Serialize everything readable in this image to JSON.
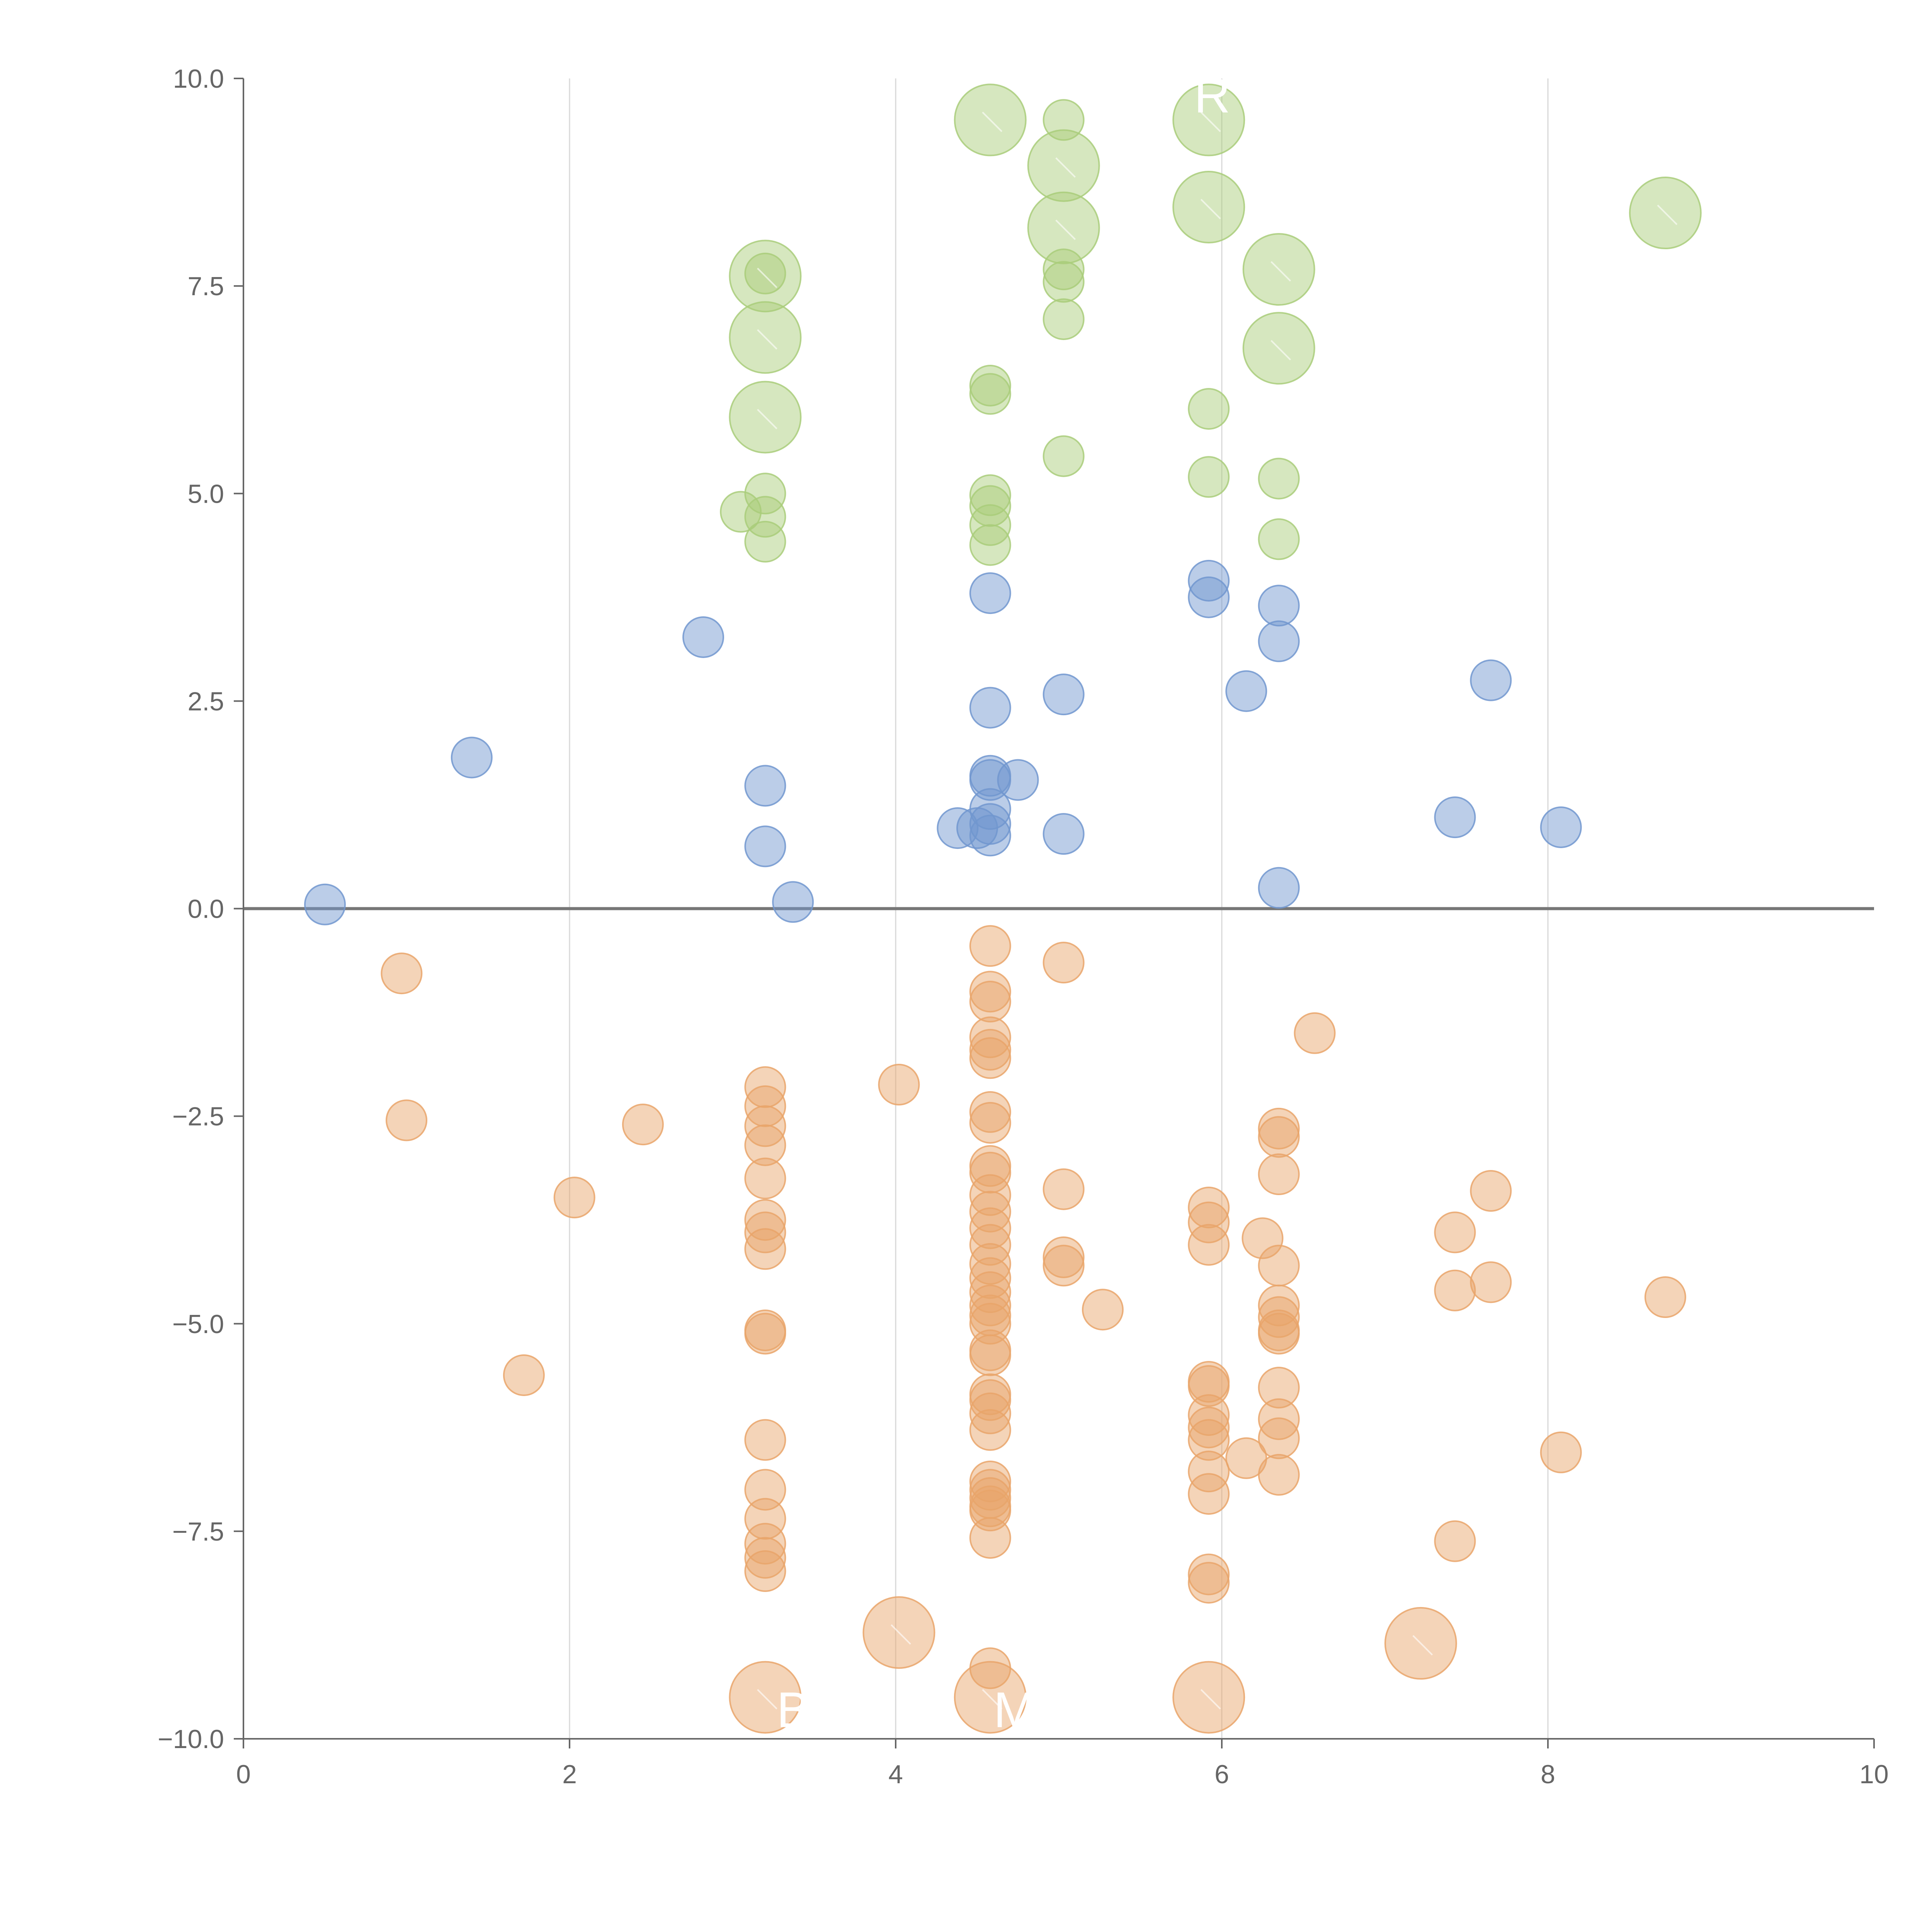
{
  "chart_data": {
    "type": "scatter",
    "title": "",
    "xlabel": "",
    "ylabel": "",
    "xlim": [
      0,
      10
    ],
    "ylim": [
      -10,
      10
    ],
    "x_ticks": [
      "0",
      "2",
      "4",
      "6",
      "8",
      "10"
    ],
    "y_ticks": [
      "−10.0",
      "−7.5",
      "−5.0",
      "−2.5",
      "0.0",
      "2.5",
      "5.0",
      "7.5",
      "10.0"
    ],
    "x_tick_values": [
      0,
      2,
      4,
      6,
      8,
      10
    ],
    "y_tick_values": [
      -10,
      -7.5,
      -5,
      -2.5,
      0,
      2.5,
      5,
      7.5,
      10
    ],
    "vertical_gridlines_at": [
      2,
      4,
      6,
      8
    ],
    "horizontal_reference_line_at": 0,
    "colors": {
      "green": "#a9cd7a",
      "blue": "#7197cf",
      "orange": "#e9a56a",
      "axis": "#666666",
      "grid": "#d8d8d8",
      "zero_line": "#777777"
    },
    "size_note": "r is a relative marker size (small = 1)",
    "series": [
      {
        "name": "green",
        "color": "#a9cd7a",
        "points": [
          {
            "x": 4.58,
            "y": 9.5,
            "r": 2.0
          },
          {
            "x": 5.03,
            "y": 9.5,
            "r": 1.0
          },
          {
            "x": 5.92,
            "y": 9.5,
            "r": 2.0
          },
          {
            "x": 5.03,
            "y": 8.95,
            "r": 2.0
          },
          {
            "x": 5.92,
            "y": 8.45,
            "r": 2.0
          },
          {
            "x": 8.72,
            "y": 8.38,
            "r": 2.0
          },
          {
            "x": 5.03,
            "y": 8.2,
            "r": 2.0
          },
          {
            "x": 3.2,
            "y": 7.65,
            "r": 1.0
          },
          {
            "x": 3.2,
            "y": 7.62,
            "r": 2.0
          },
          {
            "x": 6.35,
            "y": 7.7,
            "r": 2.0
          },
          {
            "x": 5.03,
            "y": 7.7,
            "r": 1.0
          },
          {
            "x": 5.03,
            "y": 7.55,
            "r": 1.0
          },
          {
            "x": 5.03,
            "y": 7.1,
            "r": 1.0
          },
          {
            "x": 3.2,
            "y": 6.88,
            "r": 2.0
          },
          {
            "x": 6.35,
            "y": 6.75,
            "r": 2.0
          },
          {
            "x": 4.58,
            "y": 6.3,
            "r": 1.0
          },
          {
            "x": 4.58,
            "y": 6.2,
            "r": 1.0
          },
          {
            "x": 5.92,
            "y": 6.02,
            "r": 1.0
          },
          {
            "x": 3.2,
            "y": 5.92,
            "r": 2.0
          },
          {
            "x": 5.03,
            "y": 5.45,
            "r": 1.0
          },
          {
            "x": 5.92,
            "y": 5.2,
            "r": 1.0
          },
          {
            "x": 6.35,
            "y": 5.18,
            "r": 1.0
          },
          {
            "x": 3.2,
            "y": 5.0,
            "r": 1.0
          },
          {
            "x": 4.58,
            "y": 4.98,
            "r": 1.0
          },
          {
            "x": 4.58,
            "y": 4.85,
            "r": 1.0
          },
          {
            "x": 3.05,
            "y": 4.78,
            "r": 1.0
          },
          {
            "x": 3.2,
            "y": 4.72,
            "r": 1.0
          },
          {
            "x": 4.58,
            "y": 4.62,
            "r": 1.0
          },
          {
            "x": 6.35,
            "y": 4.45,
            "r": 1.0
          },
          {
            "x": 3.2,
            "y": 4.42,
            "r": 1.0
          },
          {
            "x": 4.58,
            "y": 4.38,
            "r": 1.0
          }
        ]
      },
      {
        "name": "blue",
        "color": "#7197cf",
        "points": [
          {
            "x": 5.92,
            "y": 3.95,
            "r": 1.0
          },
          {
            "x": 4.58,
            "y": 3.8,
            "r": 1.0
          },
          {
            "x": 5.92,
            "y": 3.75,
            "r": 1.0
          },
          {
            "x": 6.35,
            "y": 3.65,
            "r": 1.0
          },
          {
            "x": 2.82,
            "y": 3.27,
            "r": 1.0
          },
          {
            "x": 6.35,
            "y": 3.22,
            "r": 1.0
          },
          {
            "x": 7.65,
            "y": 2.75,
            "r": 1.0
          },
          {
            "x": 6.15,
            "y": 2.62,
            "r": 1.0
          },
          {
            "x": 5.03,
            "y": 2.58,
            "r": 1.0
          },
          {
            "x": 4.58,
            "y": 2.42,
            "r": 1.0
          },
          {
            "x": 1.4,
            "y": 1.82,
            "r": 1.0
          },
          {
            "x": 4.58,
            "y": 1.6,
            "r": 1.0
          },
          {
            "x": 4.58,
            "y": 1.55,
            "r": 1.0
          },
          {
            "x": 4.75,
            "y": 1.55,
            "r": 1.0
          },
          {
            "x": 3.2,
            "y": 1.48,
            "r": 1.0
          },
          {
            "x": 4.58,
            "y": 1.2,
            "r": 1.0
          },
          {
            "x": 7.43,
            "y": 1.1,
            "r": 1.0
          },
          {
            "x": 4.58,
            "y": 1.02,
            "r": 1.0
          },
          {
            "x": 8.08,
            "y": 0.98,
            "r": 1.0
          },
          {
            "x": 4.38,
            "y": 0.97,
            "r": 1.0
          },
          {
            "x": 4.5,
            "y": 0.97,
            "r": 1.0
          },
          {
            "x": 5.03,
            "y": 0.9,
            "r": 1.0
          },
          {
            "x": 4.58,
            "y": 0.88,
            "r": 1.0
          },
          {
            "x": 3.2,
            "y": 0.75,
            "r": 1.0
          },
          {
            "x": 6.35,
            "y": 0.25,
            "r": 1.0
          },
          {
            "x": 3.37,
            "y": 0.08,
            "r": 1.0
          },
          {
            "x": 0.5,
            "y": 0.05,
            "r": 1.0
          }
        ]
      },
      {
        "name": "orange",
        "color": "#e9a56a",
        "points": [
          {
            "x": 4.58,
            "y": -0.45,
            "r": 1.0
          },
          {
            "x": 5.03,
            "y": -0.65,
            "r": 1.0
          },
          {
            "x": 0.97,
            "y": -0.78,
            "r": 1.0
          },
          {
            "x": 4.58,
            "y": -1.0,
            "r": 1.0
          },
          {
            "x": 4.58,
            "y": -1.12,
            "r": 1.0
          },
          {
            "x": 6.57,
            "y": -1.5,
            "r": 1.0
          },
          {
            "x": 4.58,
            "y": -1.55,
            "r": 1.0
          },
          {
            "x": 4.58,
            "y": -1.7,
            "r": 1.0
          },
          {
            "x": 4.58,
            "y": -1.8,
            "r": 1.0
          },
          {
            "x": 4.02,
            "y": -2.12,
            "r": 1.0
          },
          {
            "x": 3.2,
            "y": -2.15,
            "r": 1.0
          },
          {
            "x": 3.2,
            "y": -2.38,
            "r": 1.0
          },
          {
            "x": 4.58,
            "y": -2.45,
            "r": 1.0
          },
          {
            "x": 1.0,
            "y": -2.55,
            "r": 1.0
          },
          {
            "x": 2.45,
            "y": -2.6,
            "r": 1.0
          },
          {
            "x": 3.2,
            "y": -2.62,
            "r": 1.0
          },
          {
            "x": 4.58,
            "y": -2.58,
            "r": 1.0
          },
          {
            "x": 6.35,
            "y": -2.65,
            "r": 1.0
          },
          {
            "x": 6.35,
            "y": -2.75,
            "r": 1.0
          },
          {
            "x": 3.2,
            "y": -2.85,
            "r": 1.0
          },
          {
            "x": 4.58,
            "y": -3.1,
            "r": 1.0
          },
          {
            "x": 4.58,
            "y": -3.18,
            "r": 1.0
          },
          {
            "x": 6.35,
            "y": -3.2,
            "r": 1.0
          },
          {
            "x": 3.2,
            "y": -3.25,
            "r": 1.0
          },
          {
            "x": 5.03,
            "y": -3.38,
            "r": 1.0
          },
          {
            "x": 4.58,
            "y": -3.45,
            "r": 1.0
          },
          {
            "x": 7.65,
            "y": -3.4,
            "r": 1.0
          },
          {
            "x": 2.03,
            "y": -3.48,
            "r": 1.0
          },
          {
            "x": 5.92,
            "y": -3.6,
            "r": 1.0
          },
          {
            "x": 4.58,
            "y": -3.65,
            "r": 1.0
          },
          {
            "x": 3.2,
            "y": -3.75,
            "r": 1.0
          },
          {
            "x": 5.92,
            "y": -3.78,
            "r": 1.0
          },
          {
            "x": 4.58,
            "y": -3.85,
            "r": 1.0
          },
          {
            "x": 3.2,
            "y": -3.9,
            "r": 1.0
          },
          {
            "x": 7.43,
            "y": -3.9,
            "r": 1.0
          },
          {
            "x": 6.25,
            "y": -3.97,
            "r": 1.0
          },
          {
            "x": 4.58,
            "y": -4.05,
            "r": 1.0
          },
          {
            "x": 3.2,
            "y": -4.1,
            "r": 1.0
          },
          {
            "x": 5.92,
            "y": -4.05,
            "r": 1.0
          },
          {
            "x": 5.03,
            "y": -4.2,
            "r": 1.0
          },
          {
            "x": 4.58,
            "y": -4.28,
            "r": 1.0
          },
          {
            "x": 6.35,
            "y": -4.3,
            "r": 1.0
          },
          {
            "x": 5.03,
            "y": -4.3,
            "r": 1.0
          },
          {
            "x": 4.58,
            "y": -4.45,
            "r": 1.0
          },
          {
            "x": 7.65,
            "y": -4.5,
            "r": 1.0
          },
          {
            "x": 7.43,
            "y": -4.6,
            "r": 1.0
          },
          {
            "x": 4.58,
            "y": -4.62,
            "r": 1.0
          },
          {
            "x": 8.72,
            "y": -4.68,
            "r": 1.0
          },
          {
            "x": 4.58,
            "y": -4.78,
            "r": 1.0
          },
          {
            "x": 6.35,
            "y": -4.78,
            "r": 1.0
          },
          {
            "x": 5.27,
            "y": -4.83,
            "r": 1.0
          },
          {
            "x": 4.58,
            "y": -4.9,
            "r": 1.0
          },
          {
            "x": 6.35,
            "y": -4.92,
            "r": 1.0
          },
          {
            "x": 4.58,
            "y": -5.0,
            "r": 1.0
          },
          {
            "x": 3.2,
            "y": -5.08,
            "r": 1.0
          },
          {
            "x": 6.35,
            "y": -5.08,
            "r": 1.0
          },
          {
            "x": 3.2,
            "y": -5.12,
            "r": 1.0
          },
          {
            "x": 6.35,
            "y": -5.12,
            "r": 1.0
          },
          {
            "x": 4.58,
            "y": -5.32,
            "r": 1.0
          },
          {
            "x": 4.58,
            "y": -5.38,
            "r": 1.0
          },
          {
            "x": 1.72,
            "y": -5.62,
            "r": 1.0
          },
          {
            "x": 5.92,
            "y": -5.7,
            "r": 1.0
          },
          {
            "x": 5.92,
            "y": -5.75,
            "r": 1.0
          },
          {
            "x": 6.35,
            "y": -5.77,
            "r": 1.0
          },
          {
            "x": 4.58,
            "y": -5.85,
            "r": 1.0
          },
          {
            "x": 4.58,
            "y": -5.92,
            "r": 1.0
          },
          {
            "x": 4.58,
            "y": -6.08,
            "r": 1.0
          },
          {
            "x": 5.92,
            "y": -6.1,
            "r": 1.0
          },
          {
            "x": 6.35,
            "y": -6.15,
            "r": 1.0
          },
          {
            "x": 4.58,
            "y": -6.28,
            "r": 1.0
          },
          {
            "x": 5.92,
            "y": -6.25,
            "r": 1.0
          },
          {
            "x": 5.92,
            "y": -6.4,
            "r": 1.0
          },
          {
            "x": 3.2,
            "y": -6.4,
            "r": 1.0
          },
          {
            "x": 6.35,
            "y": -6.38,
            "r": 1.0
          },
          {
            "x": 8.08,
            "y": -6.55,
            "r": 1.0
          },
          {
            "x": 6.15,
            "y": -6.62,
            "r": 1.0
          },
          {
            "x": 5.92,
            "y": -6.78,
            "r": 1.0
          },
          {
            "x": 6.35,
            "y": -6.82,
            "r": 1.0
          },
          {
            "x": 4.58,
            "y": -6.9,
            "r": 1.0
          },
          {
            "x": 4.58,
            "y": -7.0,
            "r": 1.0
          },
          {
            "x": 3.2,
            "y": -7.0,
            "r": 1.0
          },
          {
            "x": 5.92,
            "y": -7.05,
            "r": 1.0
          },
          {
            "x": 4.58,
            "y": -7.1,
            "r": 1.0
          },
          {
            "x": 4.58,
            "y": -7.2,
            "r": 1.0
          },
          {
            "x": 4.58,
            "y": -7.25,
            "r": 1.0
          },
          {
            "x": 3.2,
            "y": -7.35,
            "r": 1.0
          },
          {
            "x": 4.58,
            "y": -7.58,
            "r": 1.0
          },
          {
            "x": 7.43,
            "y": -7.62,
            "r": 1.0
          },
          {
            "x": 3.2,
            "y": -7.65,
            "r": 1.0
          },
          {
            "x": 3.2,
            "y": -7.82,
            "r": 1.0
          },
          {
            "x": 3.2,
            "y": -7.98,
            "r": 1.0
          },
          {
            "x": 5.92,
            "y": -8.02,
            "r": 1.0
          },
          {
            "x": 5.92,
            "y": -8.12,
            "r": 1.0
          },
          {
            "x": 4.02,
            "y": -8.72,
            "r": 2.0
          },
          {
            "x": 7.22,
            "y": -8.85,
            "r": 2.0
          },
          {
            "x": 4.58,
            "y": -9.15,
            "r": 1.0
          },
          {
            "x": 3.2,
            "y": -9.5,
            "r": 2.0
          },
          {
            "x": 4.58,
            "y": -9.5,
            "r": 2.0
          },
          {
            "x": 5.92,
            "y": -9.5,
            "r": 2.0
          }
        ]
      }
    ],
    "annotations": [
      {
        "text": "R",
        "x": 5.83,
        "y": 9.8
      },
      {
        "text": "B",
        "x": 3.27,
        "y": -9.65
      },
      {
        "text": "M",
        "x": 4.6,
        "y": -9.65
      }
    ]
  }
}
